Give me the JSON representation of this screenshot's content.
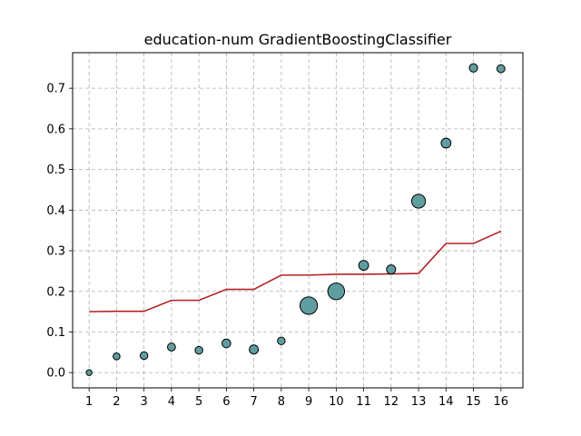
{
  "chart_data": {
    "type": "scatter",
    "title": "education-num GradientBoostingClassifier",
    "xlabel": "",
    "ylabel": "",
    "xlim": [
      0.4,
      16.8
    ],
    "ylim": [
      -0.0375,
      0.7875
    ],
    "grid": true,
    "legend": "none",
    "x_ticks": [
      1,
      2,
      3,
      4,
      5,
      6,
      7,
      8,
      9,
      10,
      11,
      12,
      13,
      14,
      15,
      16
    ],
    "y_ticks": [
      0.0,
      0.1,
      0.2,
      0.3,
      0.4,
      0.5,
      0.6,
      0.7
    ],
    "y_tick_labels": [
      "0.0",
      "0.1",
      "0.2",
      "0.3",
      "0.4",
      "0.5",
      "0.6",
      "0.7"
    ],
    "series": [
      {
        "kind": "scatter",
        "x": [
          1,
          2,
          3,
          4,
          5,
          6,
          7,
          8,
          9,
          10,
          11,
          12,
          13,
          14,
          15,
          16
        ],
        "y": [
          0.0,
          0.04,
          0.042,
          0.063,
          0.055,
          0.072,
          0.057,
          0.078,
          0.165,
          0.2,
          0.264,
          0.254,
          0.422,
          0.565,
          0.75,
          0.748
        ],
        "relative_size": [
          0.3,
          0.45,
          0.55,
          0.6,
          0.55,
          0.7,
          0.75,
          0.55,
          1.9,
          1.8,
          0.85,
          0.75,
          1.4,
          0.85,
          0.65,
          0.6
        ],
        "color": "#5f9ea0",
        "edge_color": "#000000"
      },
      {
        "kind": "line",
        "x": [
          1,
          2,
          3,
          4,
          5,
          6,
          7,
          8,
          9,
          10,
          11,
          12,
          13,
          14,
          15,
          16
        ],
        "y": [
          0.15,
          0.151,
          0.151,
          0.178,
          0.178,
          0.205,
          0.205,
          0.24,
          0.24,
          0.242,
          0.242,
          0.243,
          0.244,
          0.318,
          0.318,
          0.348
        ],
        "color": "#b22222"
      }
    ],
    "grid_color": "#b0b0b0"
  }
}
